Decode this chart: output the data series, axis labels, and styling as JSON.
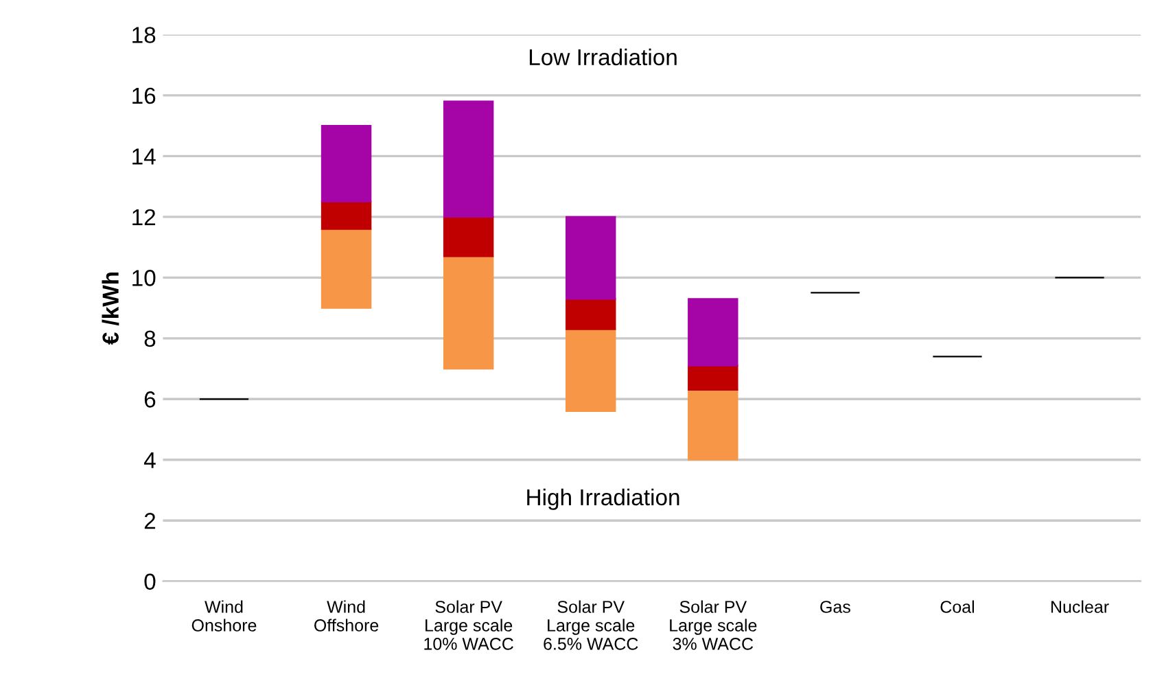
{
  "chart_data": {
    "type": "bar",
    "ylabel": "€ /kWh",
    "categories": [
      "Wind\nOnshore",
      "Wind\nOffshore",
      "Solar PV\nLarge scale\n10% WACC",
      "Solar PV\nLarge scale\n6.5% WACC",
      "Solar PV\nLarge scale\n3% WACC",
      "Gas",
      "Coal",
      "Nuclear"
    ],
    "series": [
      {
        "color": "#f79646",
        "base": [
          null,
          9,
          7,
          5.6,
          4,
          null,
          null,
          null
        ],
        "values": [
          null,
          2.6,
          3.7,
          2.7,
          2.3,
          null,
          null,
          null
        ]
      },
      {
        "color": "#c00000",
        "base": [
          null,
          11.6,
          10.7,
          8.3,
          6.3,
          null,
          null,
          null
        ],
        "values": [
          null,
          0.9,
          1.3,
          1.0,
          0.8,
          null,
          null,
          null
        ]
      },
      {
        "color": "#a505a6",
        "base": [
          null,
          12.5,
          12.0,
          9.3,
          7.1,
          null,
          null,
          null
        ],
        "values": [
          null,
          2.5,
          3.8,
          2.7,
          2.2,
          null,
          null,
          null
        ]
      },
      {
        "color": "#000000",
        "base": [
          6,
          null,
          null,
          null,
          null,
          9.5,
          7.4,
          10
        ],
        "values": [
          0,
          null,
          null,
          null,
          null,
          0,
          0,
          0
        ]
      }
    ],
    "annotations": [
      "Low Irradiation",
      "High Irradiation"
    ],
    "ylim": [
      0,
      18
    ],
    "yticks": [
      0,
      2,
      4,
      6,
      8,
      10,
      12,
      14,
      16,
      18
    ],
    "grid": "y"
  }
}
